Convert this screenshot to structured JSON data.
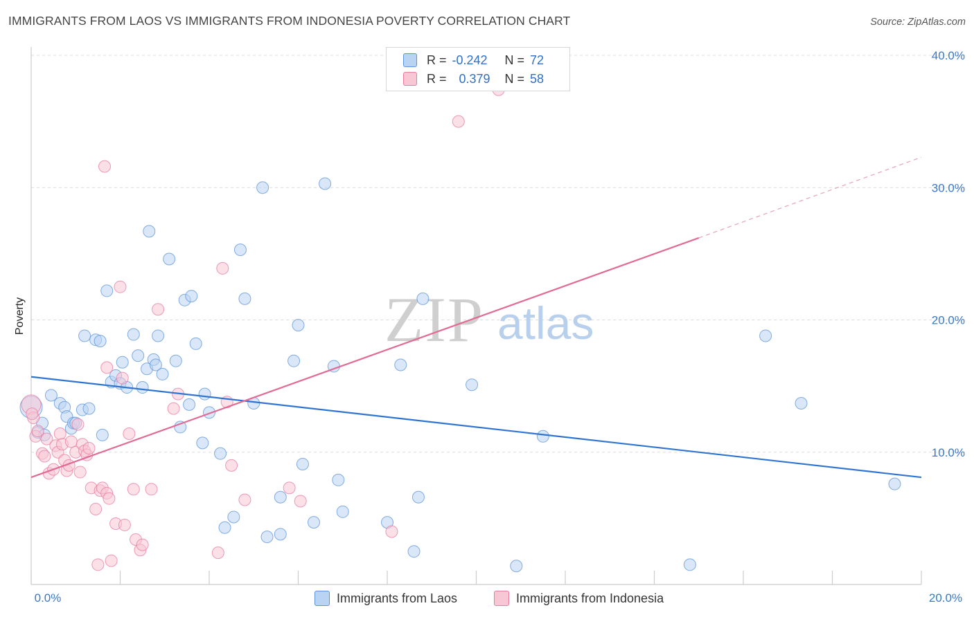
{
  "header": {
    "title": "IMMIGRANTS FROM LAOS VS IMMIGRANTS FROM INDONESIA POVERTY CORRELATION CHART",
    "source": "Source: ZipAtlas.com"
  },
  "watermark": {
    "zip": "ZIP",
    "atlas": "atlas"
  },
  "legend": {
    "rows": [
      {
        "r_label": "R =",
        "r_value": "-0.242",
        "n_label": "N =",
        "n_value": "72"
      },
      {
        "r_label": "R =",
        "r_value": "0.379",
        "n_label": "N =",
        "n_value": "58"
      }
    ]
  },
  "chart_data": {
    "type": "scatter",
    "title": "IMMIGRANTS FROM LAOS VS IMMIGRANTS FROM INDONESIA POVERTY CORRELATION CHART",
    "xlabel": "",
    "ylabel": "Poverty",
    "xlim": [
      0,
      20
    ],
    "ylim": [
      0,
      40
    ],
    "x_tick_labels": [
      "0.0%",
      "20.0%"
    ],
    "y_ticks": [
      10,
      20,
      30,
      40
    ],
    "y_tick_labels": [
      "10.0%",
      "20.0%",
      "30.0%",
      "40.0%"
    ],
    "grid": true,
    "legend_position": "top-center",
    "series": [
      {
        "name": "Immigrants from Laos",
        "color": "#5b93d9",
        "fill": "#b9d3f3",
        "r": -0.242,
        "n": 72,
        "trend": {
          "x0": 0,
          "y0": 15.7,
          "x1": 20,
          "y1": 8.1
        },
        "points": [
          [
            0.0,
            13.4
          ],
          [
            0.25,
            12.2
          ],
          [
            0.15,
            11.5
          ],
          [
            0.3,
            11.3
          ],
          [
            0.45,
            14.3
          ],
          [
            0.65,
            13.7
          ],
          [
            0.75,
            13.4
          ],
          [
            0.8,
            12.7
          ],
          [
            0.9,
            11.8
          ],
          [
            0.95,
            12.2
          ],
          [
            1.0,
            12.2
          ],
          [
            1.15,
            13.2
          ],
          [
            1.3,
            13.3
          ],
          [
            1.2,
            18.8
          ],
          [
            1.45,
            18.5
          ],
          [
            1.55,
            18.4
          ],
          [
            1.6,
            11.3
          ],
          [
            1.7,
            22.2
          ],
          [
            1.8,
            15.3
          ],
          [
            1.9,
            15.8
          ],
          [
            2.0,
            15.2
          ],
          [
            2.05,
            16.8
          ],
          [
            2.15,
            14.9
          ],
          [
            2.3,
            18.9
          ],
          [
            2.4,
            17.3
          ],
          [
            2.5,
            14.9
          ],
          [
            2.6,
            16.3
          ],
          [
            2.65,
            26.7
          ],
          [
            2.75,
            17.0
          ],
          [
            2.8,
            16.6
          ],
          [
            2.85,
            18.8
          ],
          [
            2.95,
            15.9
          ],
          [
            3.1,
            24.6
          ],
          [
            3.25,
            16.9
          ],
          [
            3.35,
            11.9
          ],
          [
            3.45,
            21.5
          ],
          [
            3.55,
            13.6
          ],
          [
            3.6,
            21.8
          ],
          [
            3.7,
            18.2
          ],
          [
            3.9,
            14.4
          ],
          [
            4.0,
            13.0
          ],
          [
            3.85,
            10.7
          ],
          [
            4.25,
            9.9
          ],
          [
            4.35,
            4.3
          ],
          [
            4.55,
            5.1
          ],
          [
            4.7,
            25.3
          ],
          [
            4.8,
            21.6
          ],
          [
            5.0,
            13.7
          ],
          [
            5.2,
            30.0
          ],
          [
            5.3,
            3.6
          ],
          [
            5.6,
            3.8
          ],
          [
            5.6,
            6.6
          ],
          [
            5.9,
            16.9
          ],
          [
            6.0,
            19.6
          ],
          [
            6.1,
            9.1
          ],
          [
            6.35,
            4.7
          ],
          [
            6.6,
            30.3
          ],
          [
            6.8,
            16.5
          ],
          [
            6.9,
            7.9
          ],
          [
            7.0,
            5.5
          ],
          [
            8.0,
            4.7
          ],
          [
            8.3,
            16.6
          ],
          [
            8.6,
            2.5
          ],
          [
            8.7,
            6.6
          ],
          [
            8.8,
            21.6
          ],
          [
            9.9,
            15.1
          ],
          [
            10.9,
            1.4
          ],
          [
            11.5,
            11.2
          ],
          [
            14.8,
            1.5
          ],
          [
            16.5,
            18.8
          ],
          [
            17.3,
            13.7
          ],
          [
            19.4,
            7.6
          ]
        ]
      },
      {
        "name": "Immigrants from Indonesia",
        "color": "#e87aa0",
        "fill": "#f8c7d6",
        "r": 0.379,
        "n": 58,
        "trend": {
          "x0": 0,
          "y0": 8.1,
          "x1": 15.0,
          "y1": 26.2
        },
        "trend_dashed_to": {
          "x": 20,
          "y": 32.3
        },
        "points": [
          [
            0.0,
            13.6
          ],
          [
            0.05,
            12.6
          ],
          [
            0.1,
            11.2
          ],
          [
            0.15,
            11.6
          ],
          [
            0.25,
            9.9
          ],
          [
            0.3,
            9.7
          ],
          [
            0.35,
            11.0
          ],
          [
            0.4,
            8.4
          ],
          [
            0.5,
            8.7
          ],
          [
            0.55,
            10.5
          ],
          [
            0.6,
            10.0
          ],
          [
            0.65,
            11.4
          ],
          [
            0.75,
            9.4
          ],
          [
            0.7,
            10.6
          ],
          [
            0.8,
            8.6
          ],
          [
            0.85,
            9.0
          ],
          [
            0.9,
            10.8
          ],
          [
            1.0,
            10.0
          ],
          [
            1.05,
            12.1
          ],
          [
            1.1,
            8.5
          ],
          [
            1.15,
            10.6
          ],
          [
            1.2,
            10.1
          ],
          [
            1.25,
            9.8
          ],
          [
            1.3,
            10.3
          ],
          [
            1.35,
            7.3
          ],
          [
            1.45,
            5.7
          ],
          [
            1.5,
            1.5
          ],
          [
            1.55,
            7.1
          ],
          [
            1.6,
            7.3
          ],
          [
            1.65,
            31.6
          ],
          [
            1.7,
            16.4
          ],
          [
            1.7,
            6.9
          ],
          [
            1.75,
            6.5
          ],
          [
            1.8,
            1.8
          ],
          [
            1.9,
            4.6
          ],
          [
            2.0,
            22.5
          ],
          [
            2.05,
            15.6
          ],
          [
            2.1,
            4.5
          ],
          [
            2.2,
            11.4
          ],
          [
            2.3,
            7.2
          ],
          [
            2.35,
            3.4
          ],
          [
            2.45,
            2.6
          ],
          [
            2.5,
            3.0
          ],
          [
            2.7,
            7.2
          ],
          [
            2.85,
            20.8
          ],
          [
            3.2,
            13.3
          ],
          [
            3.3,
            14.4
          ],
          [
            4.2,
            2.4
          ],
          [
            4.3,
            23.9
          ],
          [
            4.4,
            13.8
          ],
          [
            4.5,
            9.0
          ],
          [
            4.8,
            6.4
          ],
          [
            5.8,
            7.3
          ],
          [
            6.05,
            6.3
          ],
          [
            8.1,
            4.0
          ],
          [
            9.6,
            35.0
          ],
          [
            10.5,
            37.4
          ],
          [
            0.02,
            12.9
          ]
        ]
      }
    ]
  }
}
